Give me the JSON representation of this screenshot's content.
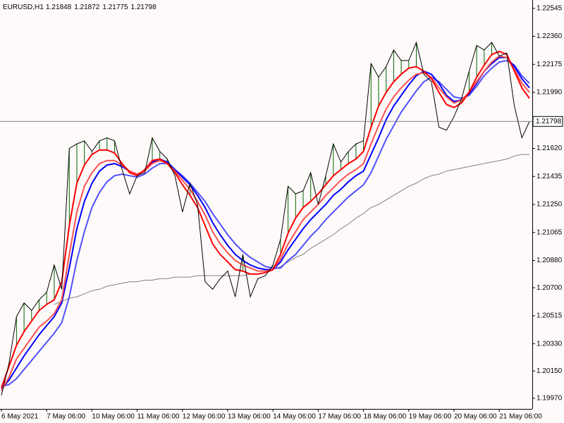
{
  "chart_data": {
    "type": "line",
    "symbol": "EURUSD,H1",
    "ohlc": [
      1.21848,
      1.21872,
      1.21775,
      1.21798
    ],
    "current_price": 1.21798,
    "categories": [
      "6 May 2021",
      null,
      null,
      null,
      null,
      null,
      "7 May 06:00",
      null,
      null,
      null,
      null,
      null,
      "10 May 06:00",
      null,
      null,
      null,
      null,
      null,
      "11 May 06:00",
      null,
      null,
      null,
      null,
      null,
      "12 May 06:00",
      null,
      null,
      null,
      null,
      null,
      "13 May 06:00",
      null,
      null,
      null,
      null,
      null,
      "14 May 06:00",
      null,
      null,
      null,
      null,
      null,
      "17 May 06:00",
      null,
      null,
      null,
      null,
      null,
      "18 May 06:00",
      null,
      null,
      null,
      null,
      null,
      "19 May 06:00",
      null,
      null,
      null,
      null,
      null,
      "20 May 06:00",
      null,
      null,
      null,
      null,
      null,
      "21 May 06:00",
      null,
      null,
      null,
      null
    ],
    "series": [
      {
        "color": "#000000",
        "values": [
          1.1999,
          1.202,
          1.2051,
          1.206,
          1.2055,
          1.2062,
          1.2067,
          1.2085,
          1.2069,
          1.2162,
          1.2165,
          1.2167,
          1.216,
          1.2167,
          1.2169,
          1.2167,
          1.2148,
          1.2132,
          1.2144,
          1.2146,
          1.2169,
          1.216,
          1.2155,
          1.2144,
          1.212,
          1.2139,
          1.2125,
          1.2074,
          1.2069,
          1.2076,
          1.2081,
          1.2064,
          1.2092,
          1.2064,
          1.2076,
          1.2078,
          1.2085,
          1.2102,
          1.2137,
          1.2132,
          1.2134,
          1.2146,
          1.2125,
          1.2144,
          1.2165,
          1.2153,
          1.216,
          1.2165,
          1.2167,
          1.2218,
          1.2209,
          1.2216,
          1.2227,
          1.222,
          1.222,
          1.2232,
          1.2211,
          1.2206,
          1.2176,
          1.2174,
          1.2183,
          1.2195,
          1.2213,
          1.223,
          1.2227,
          1.2232,
          1.2223,
          1.2225,
          1.219,
          1.2169,
          1.21798
        ]
      },
      {
        "color": "#ff0000",
        "values": [
          1.2004,
          1.2018,
          1.2032,
          1.2041,
          1.2048,
          1.2055,
          1.2059,
          1.2062,
          1.2074,
          1.2111,
          1.2139,
          1.2151,
          1.2158,
          1.2161,
          1.2161,
          1.2159,
          1.2152,
          1.2146,
          1.2144,
          1.2148,
          1.2154,
          1.2155,
          1.2152,
          1.2146,
          1.2138,
          1.2131,
          1.2123,
          1.2111,
          1.2099,
          1.2092,
          1.2087,
          1.2082,
          1.2081,
          1.2079,
          1.2079,
          1.208,
          1.2082,
          1.2092,
          1.2106,
          1.2116,
          1.2123,
          1.2127,
          1.2132,
          1.2138,
          1.2144,
          1.2148,
          1.2152,
          1.2155,
          1.216,
          1.2176,
          1.219,
          1.2199,
          1.2206,
          1.2211,
          1.2215,
          1.2216,
          1.2213,
          1.2208,
          1.2199,
          1.2191,
          1.2189,
          1.2192,
          1.2199,
          1.2209,
          1.2217,
          1.2224,
          1.2226,
          1.2224,
          1.2213,
          1.2202,
          1.2195
        ]
      },
      {
        "color": "#ff5050",
        "values": [
          1.2002,
          1.2011,
          1.2023,
          1.203,
          1.2037,
          1.2044,
          1.2048,
          1.2053,
          1.2062,
          1.2092,
          1.212,
          1.2137,
          1.2146,
          1.2152,
          1.2154,
          1.2154,
          1.2151,
          1.2147,
          1.2145,
          1.2147,
          1.2152,
          1.2154,
          1.2152,
          1.2147,
          1.2141,
          1.2135,
          1.2127,
          1.2118,
          1.2107,
          1.2099,
          1.2093,
          1.2088,
          1.2085,
          1.2083,
          1.2081,
          1.2081,
          1.2082,
          1.2089,
          1.2099,
          1.2107,
          1.2115,
          1.212,
          1.2125,
          1.2131,
          1.2136,
          1.2141,
          1.2145,
          1.2148,
          1.2152,
          1.2165,
          1.2177,
          1.2188,
          1.2196,
          1.2202,
          1.2207,
          1.2211,
          1.2212,
          1.2209,
          1.2202,
          1.2196,
          1.2192,
          1.2194,
          1.2199,
          1.2206,
          1.2213,
          1.2219,
          1.2223,
          1.2222,
          1.2214,
          1.2205,
          1.2199
        ]
      },
      {
        "color": "#0000ff",
        "values": [
          1.2003,
          1.2009,
          1.2017,
          1.2025,
          1.2032,
          1.2039,
          1.2045,
          1.2051,
          1.206,
          1.2083,
          1.2109,
          1.2127,
          1.2139,
          1.2147,
          1.2151,
          1.2152,
          1.215,
          1.2147,
          1.2145,
          1.2147,
          1.2153,
          1.2155,
          1.2153,
          1.2148,
          1.2143,
          1.2138,
          1.2131,
          1.2123,
          1.2113,
          1.2105,
          1.2098,
          1.2092,
          1.2088,
          1.2085,
          1.2083,
          1.2082,
          1.2082,
          1.2087,
          1.2095,
          1.2102,
          1.2109,
          1.2115,
          1.212,
          1.2125,
          1.2131,
          1.2135,
          1.214,
          1.2144,
          1.2147,
          1.2158,
          1.2169,
          1.2181,
          1.219,
          1.2197,
          1.2204,
          1.221,
          1.2213,
          1.2211,
          1.2205,
          1.2197,
          1.2193,
          1.2194,
          1.2198,
          1.2205,
          1.2213,
          1.2218,
          1.2222,
          1.2222,
          1.2216,
          1.2208,
          1.2202
        ]
      },
      {
        "color": "#5050ff",
        "values": [
          1.2005,
          1.2006,
          1.201,
          1.2016,
          1.2022,
          1.2028,
          1.2034,
          1.204,
          1.2047,
          1.2064,
          1.2088,
          1.2107,
          1.2123,
          1.2133,
          1.214,
          1.2144,
          1.2145,
          1.2144,
          1.2143,
          1.2145,
          1.2149,
          1.2152,
          1.2152,
          1.2148,
          1.2144,
          1.2139,
          1.2133,
          1.2127,
          1.2119,
          1.2112,
          1.2105,
          1.2099,
          1.2094,
          1.209,
          1.2087,
          1.2084,
          1.2083,
          1.2083,
          1.2088,
          1.2092,
          1.2098,
          1.2104,
          1.2109,
          1.2115,
          1.212,
          1.2125,
          1.213,
          1.2134,
          1.2138,
          1.2146,
          1.2157,
          1.2168,
          1.2177,
          1.2186,
          1.2193,
          1.22,
          1.2206,
          1.2209,
          1.2206,
          1.2201,
          1.2196,
          1.2195,
          1.2197,
          1.2203,
          1.221,
          1.2215,
          1.2219,
          1.222,
          1.2217,
          1.221,
          1.2205
        ]
      },
      {
        "color": "#808080",
        "values": [
          null,
          null,
          null,
          null,
          null,
          null,
          null,
          1.2059,
          1.2061,
          1.2063,
          1.2064,
          1.2066,
          1.2068,
          1.2069,
          1.2071,
          1.2072,
          1.2073,
          1.2074,
          1.2074,
          1.2075,
          1.2075,
          1.2076,
          1.2076,
          1.2077,
          1.2077,
          1.2077,
          1.2078,
          1.2078,
          1.2078,
          1.2078,
          1.2078,
          1.2078,
          1.2078,
          1.2079,
          1.2079,
          1.208,
          1.2082,
          1.2084,
          1.2087,
          1.209,
          1.2092,
          1.2096,
          1.2099,
          1.2102,
          1.2105,
          1.2109,
          1.2112,
          1.2116,
          1.2119,
          1.2123,
          1.2125,
          1.2128,
          1.2131,
          1.2134,
          1.2137,
          1.2139,
          1.2142,
          1.2144,
          1.2145,
          1.2147,
          1.2148,
          1.2149,
          1.215,
          1.2151,
          1.2152,
          1.2153,
          1.2154,
          1.2155,
          1.2157,
          1.2158,
          1.2158
        ]
      }
    ],
    "spike_color": "#006400",
    "ylim": [
      1.199,
      1.226
    ],
    "yticks": [
      1.22545,
      {
        "value": 1.2236,
        "label": "1.22360"
      },
      1.22175,
      {
        "value": 1.2199,
        "label": "1.21990"
      },
      {
        "value": 1.2162,
        "label": "1.21620"
      },
      1.21435,
      {
        "value": 1.2125,
        "label": "1.21250"
      },
      1.21065,
      {
        "value": 1.2088,
        "label": "1.20880"
      },
      {
        "value": 1.207,
        "label": "1.20700"
      },
      1.20515,
      {
        "value": 1.2033,
        "label": "1.20330"
      },
      {
        "value": 1.2015,
        "label": "1.20150"
      },
      {
        "value": 1.1997,
        "label": "1.19970"
      }
    ]
  }
}
